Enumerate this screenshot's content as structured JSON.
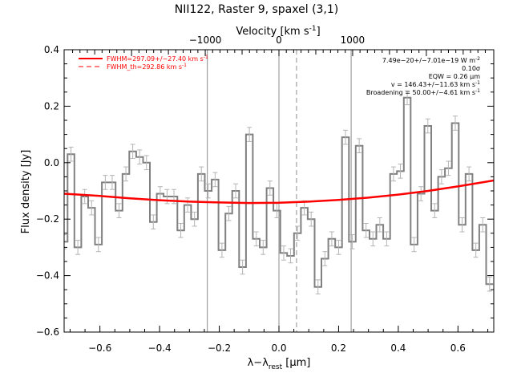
{
  "chart_data": {
    "type": "line",
    "title": "NII122, Raster 9, spaxel (3,1)",
    "xlabel": "λ−λrest [μm]",
    "xlabel_main": "λ−λ",
    "xlabel_sub": "rest",
    "xlabel_unit": " [μm]",
    "ylabel": "Flux density [Jy]",
    "top_axis_label": "Velocity [km s",
    "top_axis_exp": "-1",
    "top_axis_close": "]",
    "xlim": [
      -0.72,
      0.72
    ],
    "ylim": [
      -0.6,
      0.4
    ],
    "x_ticks": [
      -0.6,
      -0.4,
      -0.2,
      0.0,
      0.2,
      0.4,
      0.6
    ],
    "x_tick_labels": [
      "−0.6",
      "−0.4",
      "−0.2",
      "0.0",
      "0.2",
      "0.4",
      "0.6"
    ],
    "y_ticks": [
      -0.6,
      -0.4,
      -0.2,
      0.0,
      0.2,
      0.4
    ],
    "y_tick_labels": [
      "−0.6",
      "−0.4",
      "−0.2",
      "0.0",
      "0.2",
      "0.4"
    ],
    "top_ticks_x": [
      -0.247,
      0.0,
      0.247
    ],
    "top_tick_labels": [
      "−1000",
      "0",
      "1000"
    ],
    "vertical_lines": [
      {
        "x": -0.24,
        "style": "solid"
      },
      {
        "x": 0.0,
        "style": "solid"
      },
      {
        "x": 0.059,
        "style": "dashed"
      },
      {
        "x": 0.242,
        "style": "solid"
      }
    ],
    "legend": [
      {
        "text": "FWHM=297.09+/−27.40 km s",
        "sup": "-1",
        "style": "solid",
        "color": "#ff0000"
      },
      {
        "text": "FWHM_th=292.86 km s",
        "sup": "-1",
        "style": "dashed",
        "color": "#ff0000"
      }
    ],
    "annotations": [
      {
        "text": "7.49e−20+/−7.01e−19 W m",
        "sup": "-2"
      },
      {
        "text": "0.10σ",
        "sup": ""
      },
      {
        "text": "EQW = 0.26 μm",
        "sup": ""
      },
      {
        "text": "v = 146.43+/−11.63 km s",
        "sup": "-1"
      },
      {
        "text": "Broadening = 50.00+/−4.61 km s",
        "sup": "-1"
      }
    ],
    "series": [
      {
        "kind": "spectrum",
        "color": "#808080",
        "x": [
          -0.72,
          -0.697,
          -0.674,
          -0.651,
          -0.628,
          -0.605,
          -0.582,
          -0.559,
          -0.536,
          -0.513,
          -0.49,
          -0.467,
          -0.444,
          -0.421,
          -0.398,
          -0.375,
          -0.352,
          -0.329,
          -0.306,
          -0.283,
          -0.26,
          -0.237,
          -0.214,
          -0.191,
          -0.168,
          -0.145,
          -0.122,
          -0.099,
          -0.076,
          -0.053,
          -0.03,
          -0.007,
          0.016,
          0.039,
          0.062,
          0.085,
          0.108,
          0.131,
          0.154,
          0.177,
          0.2,
          0.223,
          0.246,
          0.269,
          0.292,
          0.315,
          0.338,
          0.361,
          0.384,
          0.407,
          0.43,
          0.453,
          0.476,
          0.499,
          0.522,
          0.545,
          0.568,
          0.591,
          0.614,
          0.637,
          0.66,
          0.683,
          0.706
        ],
        "y": [
          -0.28,
          0.03,
          -0.3,
          -0.12,
          -0.16,
          -0.29,
          -0.07,
          -0.07,
          -0.17,
          -0.04,
          0.04,
          0.02,
          0.0,
          -0.21,
          -0.11,
          -0.12,
          -0.12,
          -0.24,
          -0.15,
          -0.2,
          -0.04,
          -0.1,
          -0.06,
          -0.31,
          -0.18,
          -0.1,
          -0.37,
          0.1,
          -0.27,
          -0.3,
          -0.09,
          -0.17,
          -0.32,
          -0.33,
          -0.25,
          -0.16,
          -0.2,
          -0.44,
          -0.34,
          -0.27,
          -0.3,
          0.09,
          -0.28,
          0.06,
          -0.24,
          -0.27,
          -0.22,
          -0.27,
          -0.04,
          -0.03,
          0.23,
          -0.29,
          -0.11,
          0.13,
          -0.17,
          -0.05,
          -0.02,
          0.14,
          -0.22,
          -0.04,
          -0.31,
          -0.22,
          -0.43
        ],
        "errors": [
          0.025,
          0.025,
          0.025,
          0.025,
          0.025,
          0.025,
          0.025,
          0.025,
          0.025,
          0.025,
          0.025,
          0.025,
          0.025,
          0.025,
          0.025,
          0.025,
          0.025,
          0.025,
          0.025,
          0.025,
          0.025,
          0.025,
          0.025,
          0.025,
          0.025,
          0.025,
          0.025,
          0.025,
          0.025,
          0.025,
          0.025,
          0.025,
          0.025,
          0.025,
          0.025,
          0.025,
          0.025,
          0.025,
          0.025,
          0.025,
          0.025,
          0.025,
          0.025,
          0.025,
          0.025,
          0.025,
          0.025,
          0.025,
          0.025,
          0.025,
          0.025,
          0.025,
          0.025,
          0.025,
          0.025,
          0.025,
          0.025,
          0.025,
          0.025,
          0.025,
          0.025,
          0.025,
          0.025
        ]
      },
      {
        "kind": "fit",
        "color": "#ff0000",
        "x": [
          -0.72,
          -0.6,
          -0.5,
          -0.4,
          -0.3,
          -0.2,
          -0.1,
          0.0,
          0.1,
          0.2,
          0.3,
          0.4,
          0.5,
          0.6,
          0.72
        ],
        "y": [
          -0.11,
          -0.118,
          -0.126,
          -0.133,
          -0.138,
          -0.141,
          -0.143,
          -0.142,
          -0.138,
          -0.132,
          -0.124,
          -0.113,
          -0.1,
          -0.084,
          -0.063
        ]
      }
    ]
  }
}
